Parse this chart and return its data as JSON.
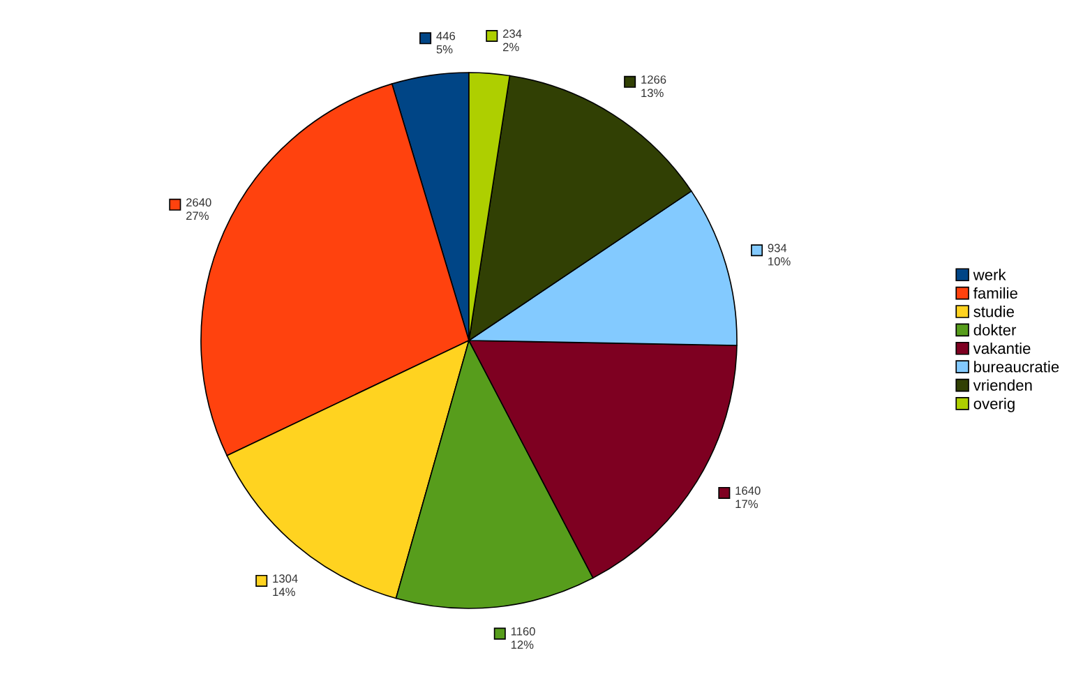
{
  "chart_data": {
    "type": "pie",
    "categories": [
      "werk",
      "familie",
      "studie",
      "dokter",
      "vakantie",
      "bureaucratie",
      "vrienden",
      "overig"
    ],
    "values": [
      446,
      2640,
      1304,
      1160,
      1640,
      934,
      1266,
      234
    ],
    "value_labels": [
      "446\n5%",
      "2640\n27%",
      "1304\n14%",
      "1160\n12%",
      "1640\n17%",
      "934\n10%",
      "1266\n13%",
      "234\n2%"
    ],
    "colors": [
      "#004586",
      "#ff420e",
      "#ffd320",
      "#579d1c",
      "#7e0021",
      "#83caff",
      "#314004",
      "#aecf00"
    ],
    "legend": "right"
  }
}
